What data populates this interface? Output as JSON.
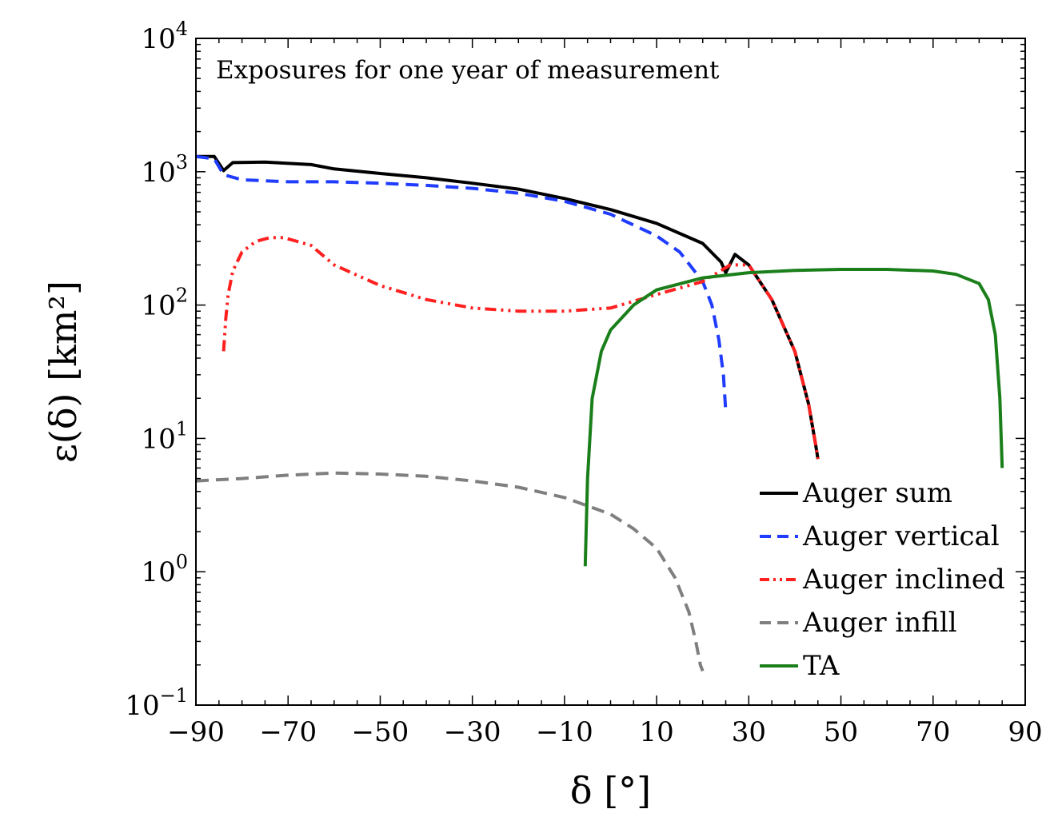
{
  "chart_data": {
    "type": "line",
    "title": "",
    "annotation": "Exposures for one year of measurement",
    "xlabel": "δ [°]",
    "ylabel": "ε(δ) [km²]",
    "xlim": [
      -90,
      90
    ],
    "ylim": [
      0.1,
      10000
    ],
    "yscale": "log",
    "x_ticks": [
      -90,
      -70,
      -50,
      -30,
      -10,
      10,
      30,
      50,
      70,
      90
    ],
    "x_tick_labels": [
      "−90",
      "−70",
      "−50",
      "−30",
      "−10",
      "10",
      "30",
      "50",
      "70",
      "90"
    ],
    "y_ticks": [
      {
        "value": 0.1,
        "base": "10",
        "exp": "−1"
      },
      {
        "value": 1,
        "base": "10",
        "exp": "0"
      },
      {
        "value": 10,
        "base": "10",
        "exp": "1"
      },
      {
        "value": 100,
        "base": "10",
        "exp": "2"
      },
      {
        "value": 1000,
        "base": "10",
        "exp": "3"
      },
      {
        "value": 10000,
        "base": "10",
        "exp": "4"
      }
    ],
    "legend_position": "bottom-right",
    "series": [
      {
        "name": "Auger sum",
        "color": "#000000",
        "dash": "solid",
        "x": [
          -90,
          -86,
          -84,
          -82,
          -75,
          -65,
          -60,
          -50,
          -40,
          -30,
          -20,
          -10,
          0,
          10,
          20,
          24,
          25,
          27,
          30,
          35,
          40,
          43,
          44.5,
          45
        ],
        "y": [
          1300,
          1300,
          1020,
          1170,
          1180,
          1130,
          1050,
          970,
          900,
          820,
          740,
          630,
          520,
          410,
          290,
          210,
          175,
          240,
          200,
          110,
          45,
          18,
          9,
          7
        ]
      },
      {
        "name": "Auger vertical",
        "color": "#1f3cff",
        "dash": "dashed",
        "x": [
          -90,
          -86,
          -84,
          -80,
          -70,
          -60,
          -50,
          -40,
          -30,
          -20,
          -10,
          0,
          10,
          15,
          20,
          22,
          23.5,
          24.5,
          25
        ],
        "y": [
          1300,
          1250,
          950,
          870,
          840,
          840,
          820,
          790,
          750,
          690,
          600,
          480,
          330,
          250,
          150,
          100,
          55,
          30,
          16
        ]
      },
      {
        "name": "Auger inclined",
        "color": "#ff2020",
        "dash": "dashdotdot",
        "x": [
          -84,
          -83.5,
          -83,
          -82,
          -80,
          -77,
          -74,
          -71,
          -68,
          -65,
          -60,
          -50,
          -40,
          -30,
          -20,
          -10,
          0,
          10,
          20,
          26,
          30,
          35,
          40,
          43,
          44.5,
          45
        ],
        "y": [
          45,
          80,
          120,
          180,
          250,
          300,
          320,
          320,
          300,
          280,
          200,
          140,
          110,
          95,
          90,
          90,
          95,
          120,
          150,
          200,
          200,
          110,
          45,
          18,
          9,
          7
        ]
      },
      {
        "name": "Auger infill",
        "color": "#7f7f7f",
        "dash": "dashed",
        "x": [
          -90,
          -80,
          -70,
          -60,
          -50,
          -40,
          -30,
          -20,
          -10,
          0,
          5,
          10,
          14,
          17,
          18.5,
          19.5,
          20
        ],
        "y": [
          4.8,
          5.0,
          5.3,
          5.5,
          5.4,
          5.2,
          4.8,
          4.3,
          3.6,
          2.7,
          2.1,
          1.5,
          0.9,
          0.5,
          0.3,
          0.2,
          0.18
        ]
      },
      {
        "name": "TA",
        "color": "#1a7f1a",
        "dash": "solid",
        "x": [
          -5.5,
          -5,
          -4,
          -2,
          0,
          5,
          10,
          20,
          30,
          40,
          50,
          60,
          70,
          75,
          80,
          82,
          83.5,
          84.5,
          85
        ],
        "y": [
          1.1,
          5,
          20,
          45,
          65,
          100,
          130,
          160,
          175,
          182,
          185,
          185,
          180,
          170,
          145,
          110,
          60,
          20,
          6
        ]
      }
    ]
  }
}
